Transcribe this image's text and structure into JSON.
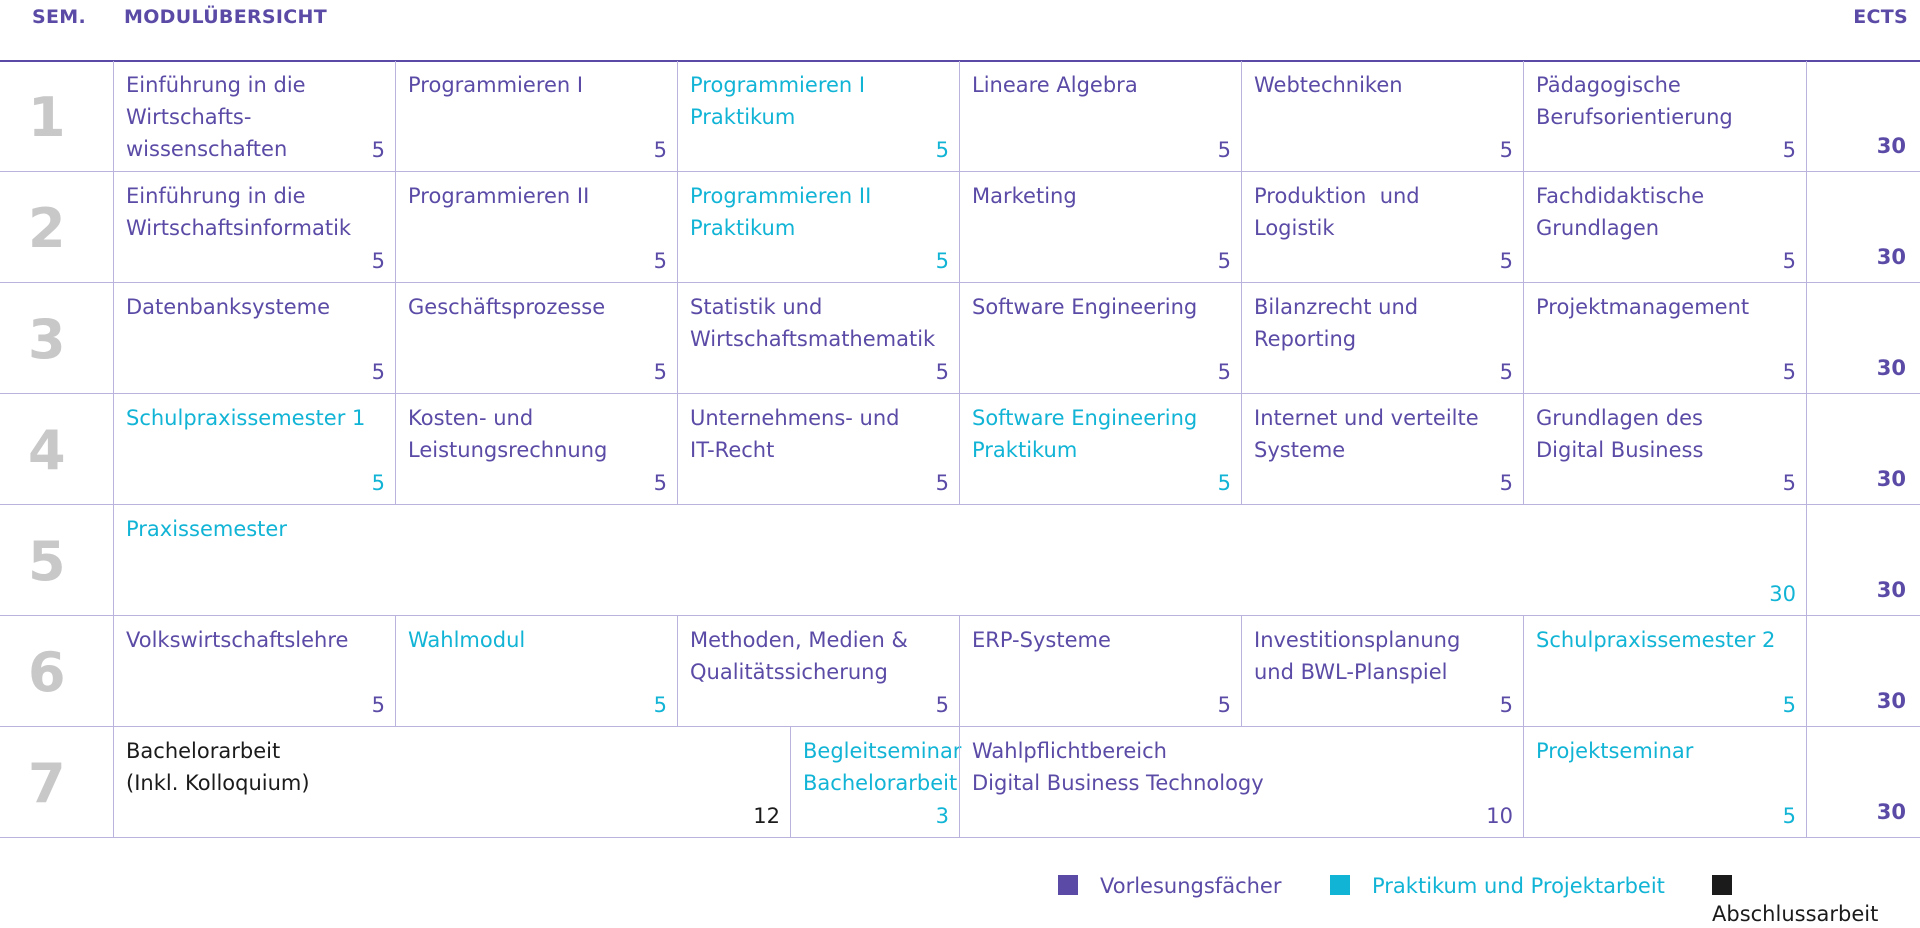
{
  "header": {
    "sem": "SEM.",
    "title": "MODULÜBERSICHT",
    "ects": "ECTS"
  },
  "semesters": [
    {
      "num": "1",
      "total": "30",
      "modules": [
        {
          "name": "Einführung in die\nWirtschafts-\nwissenschaften",
          "ects": "5",
          "type": "lecture"
        },
        {
          "name": "Programmieren I",
          "ects": "5",
          "type": "lecture"
        },
        {
          "name": "Programmieren I\nPraktikum",
          "ects": "5",
          "type": "practical"
        },
        {
          "name": "Lineare Algebra",
          "ects": "5",
          "type": "lecture"
        },
        {
          "name": "Webtechniken",
          "ects": "5",
          "type": "lecture"
        },
        {
          "name": "Pädagogische\nBerufsorientierung",
          "ects": "5",
          "type": "lecture"
        }
      ]
    },
    {
      "num": "2",
      "total": "30",
      "modules": [
        {
          "name": "Einführung in die\nWirtschaftsinformatik",
          "ects": "5",
          "type": "lecture"
        },
        {
          "name": "Programmieren II",
          "ects": "5",
          "type": "lecture"
        },
        {
          "name": "Programmieren II\nPraktikum",
          "ects": "5",
          "type": "practical"
        },
        {
          "name": "Marketing",
          "ects": "5",
          "type": "lecture"
        },
        {
          "name": "Produktion  und\nLogistik",
          "ects": "5",
          "type": "lecture"
        },
        {
          "name": "Fachdidaktische\nGrundlagen",
          "ects": "5",
          "type": "lecture"
        }
      ]
    },
    {
      "num": "3",
      "total": "30",
      "modules": [
        {
          "name": "Datenbanksysteme",
          "ects": "5",
          "type": "lecture"
        },
        {
          "name": "Geschäftsprozesse",
          "ects": "5",
          "type": "lecture"
        },
        {
          "name": "Statistik und\nWirtschaftsmathematik",
          "ects": "5",
          "type": "lecture"
        },
        {
          "name": "Software Engineering",
          "ects": "5",
          "type": "lecture"
        },
        {
          "name": "Bilanzrecht und\nReporting",
          "ects": "5",
          "type": "lecture"
        },
        {
          "name": "Projektmanagement",
          "ects": "5",
          "type": "lecture"
        }
      ]
    },
    {
      "num": "4",
      "total": "30",
      "modules": [
        {
          "name": "Schulpraxissemester 1",
          "ects": "5",
          "type": "practical"
        },
        {
          "name": "Kosten- und\nLeistungsrechnung",
          "ects": "5",
          "type": "lecture"
        },
        {
          "name": "Unternehmens- und\nIT-Recht",
          "ects": "5",
          "type": "lecture"
        },
        {
          "name": "Software Engineering\nPraktikum",
          "ects": "5",
          "type": "practical"
        },
        {
          "name": "Internet und verteilte\nSysteme",
          "ects": "5",
          "type": "lecture"
        },
        {
          "name": "Grundlagen des\nDigital Business",
          "ects": "5",
          "type": "lecture"
        }
      ]
    },
    {
      "num": "5",
      "total": "30",
      "modules": [
        {
          "name": "Praxissemester",
          "ects": "30",
          "type": "practical"
        }
      ]
    },
    {
      "num": "6",
      "total": "30",
      "modules": [
        {
          "name": "Volkswirtschaftslehre",
          "ects": "5",
          "type": "lecture"
        },
        {
          "name": "Wahlmodul",
          "ects": "5",
          "type": "practical"
        },
        {
          "name": "Methoden, Medien &\nQualitätssicherung",
          "ects": "5",
          "type": "lecture"
        },
        {
          "name": "ERP-Systeme",
          "ects": "5",
          "type": "lecture"
        },
        {
          "name": "Investitionsplanung\nund BWL-Planspiel",
          "ects": "5",
          "type": "lecture"
        },
        {
          "name": "Schulpraxissemester 2",
          "ects": "5",
          "type": "practical"
        }
      ]
    },
    {
      "num": "7",
      "total": "30",
      "modules": [
        {
          "name": "Bachelorarbeit\n(Inkl. Kolloquium)",
          "ects": "12",
          "type": "thesis"
        },
        {
          "name": "Begleitseminar\nBachelorarbeit",
          "ects": "3",
          "type": "practical"
        },
        {
          "name": "Wahlpflichtbereich\nDigital Business Technology",
          "ects": "10",
          "type": "lecture"
        },
        {
          "name": "Projektseminar",
          "ects": "5",
          "type": "practical"
        }
      ]
    }
  ],
  "legend": [
    {
      "label": "Vorlesungsfächer",
      "color": "#5b4ba6"
    },
    {
      "label": "Praktikum und Projektarbeit",
      "color": "#12b4d6"
    },
    {
      "label": "Abschlussarbeit",
      "color": "#1b1b1b"
    }
  ],
  "colors": {
    "lecture": "#5b4ba6",
    "practical": "#12b4d6",
    "thesis": "#1b1b1b",
    "grid": "#b9b3de",
    "semester_number": "#c8c8c8"
  }
}
